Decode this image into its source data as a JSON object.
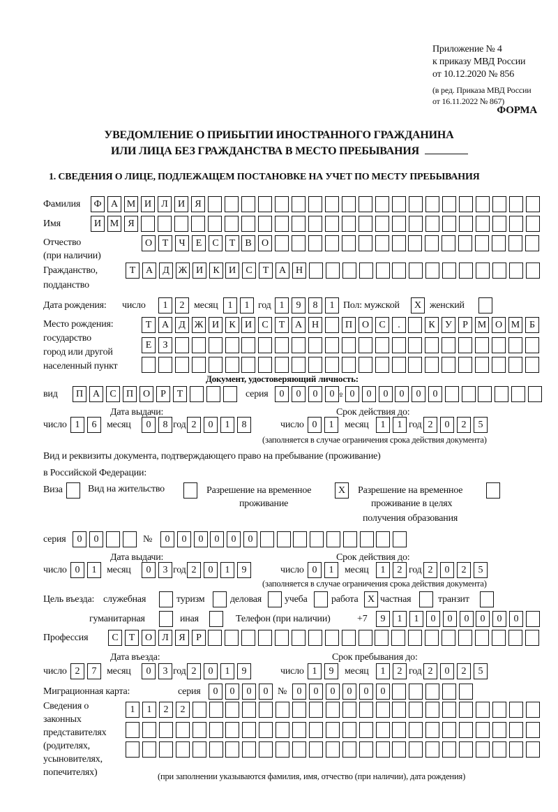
{
  "header": {
    "appendix": [
      "Приложение № 4",
      "к приказу МВД России",
      "от 10.12.2020 № 856"
    ],
    "amendment": [
      "(в ред. Приказа МВД России",
      "от 16.11.2022 № 867)"
    ],
    "form_label": "ФОРМА",
    "title_line1": "УВЕДОМЛЕНИЕ О ПРИБЫТИИ ИНОСТРАННОГО ГРАЖДАНИНА",
    "title_line2": "ИЛИ ЛИЦА БЕЗ ГРАЖДАНСТВА В МЕСТО ПРЕБЫВАНИЯ",
    "section1": "1. СВЕДЕНИЯ О ЛИЦЕ, ПОДЛЕЖАЩЕМ ПОСТАНОВКЕ НА УЧЕТ ПО МЕСТУ ПРЕБЫВАНИЯ"
  },
  "labels": {
    "surname": "Фамилия",
    "name": "Имя",
    "patronymic": "Отчество",
    "patronymic_note": "(при наличии)",
    "citizenship": "Гражданство,",
    "citizenship2": "подданство",
    "birth_date": "Дата рождения:",
    "day": "число",
    "month": "месяц",
    "year": "год",
    "sex_male": "Пол: мужской",
    "sex_female": "женский",
    "birthplace": [
      "Место рождения:",
      "государство",
      "город или другой",
      "населенный пункт"
    ],
    "id_doc_heading": "Документ, удостоверяющий личность:",
    "kind": "вид",
    "series": "серия",
    "number": "№",
    "issue_date": "Дата выдачи:",
    "expiry_date": "Срок действия до:",
    "expiry_note": "(заполняется в случае ограничения срока действия документа)",
    "residence_doc1": "Вид и реквизиты документа, подтверждающего право на пребывание (проживание)",
    "residence_doc2": "в Российской Федерации:",
    "visa": "Виза",
    "residence_permit": "Вид на жительство",
    "trp": [
      "Разрешение на временное",
      "проживание"
    ],
    "trp_edu": [
      "Разрешение на временное",
      "проживание в целях",
      "получения образования"
    ],
    "purpose": "Цель въезда:",
    "purposes": [
      "служебная",
      "туризм",
      "деловая",
      "учеба",
      "работа",
      "частная",
      "транзит",
      "гуманитарная",
      "иная"
    ],
    "phone": "Телефон (при наличии)",
    "phone_prefix": "+7",
    "profession": "Профессия",
    "entry_date": "Дата въезда:",
    "stay_until": "Срок пребывания до:",
    "migration_card": "Миграционная карта:",
    "representatives": [
      "Сведения о",
      "законных",
      "представителях",
      "(родителях,",
      "усыновителях,",
      "попечителях)"
    ],
    "representatives_note": "(при заполнении указываются фамилия, имя, отчество (при наличии), дата рождения)"
  },
  "person": {
    "surname": "ФАМИЛИЯ",
    "name": "ИМЯ",
    "patronymic": "ОТЧЕСТВО",
    "citizenship": "ТАДЖИКИСТАН",
    "birth_day": "12",
    "birth_month": "11",
    "birth_year": "1981",
    "sex_male": "X",
    "sex_female": "",
    "birthplace_line1": "ТАДЖИКИСТАН ПОС. КУРМОМБ",
    "birthplace_line2": "ЕЗ",
    "birthplace_line3": ""
  },
  "id_doc": {
    "kind": "ПАСПОРТ",
    "series": "0000",
    "number": "000000",
    "issue_day": "16",
    "issue_month": "08",
    "issue_year": "2018",
    "expiry_day": "01",
    "expiry_month": "11",
    "expiry_year": "2025"
  },
  "residence_doc": {
    "visa": "",
    "residence_permit": "",
    "trp": "X",
    "trp_edu": "",
    "series": "00",
    "number": "000000",
    "issue_day": "01",
    "issue_month": "03",
    "issue_year": "2019",
    "expiry_day": "01",
    "expiry_month": "12",
    "expiry_year": "2025"
  },
  "purpose": {
    "service": "",
    "tourism": "",
    "business": "",
    "study": "",
    "work": "X",
    "private": "",
    "transit": "",
    "humanitarian": "",
    "other": ""
  },
  "phone": "911000000",
  "profession": "СТОЛЯР",
  "entry": {
    "day": "27",
    "month": "03",
    "year": "2019"
  },
  "stay_until": {
    "day": "19",
    "month": "12",
    "year": "2025"
  },
  "migration_card": {
    "series": "0000",
    "number": "000000"
  },
  "representatives": {
    "line1": "1122",
    "line2": "",
    "line3": ""
  }
}
